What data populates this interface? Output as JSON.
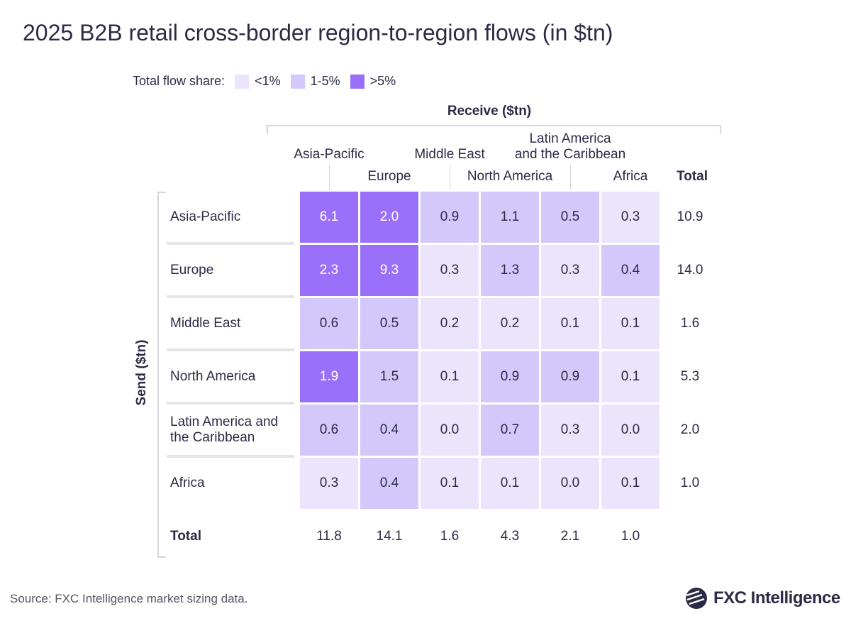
{
  "title": "2025 B2B retail cross-border region-to-region flows (in $tn)",
  "legend": {
    "label": "Total flow share:",
    "items": [
      {
        "label": "<1%",
        "level": "low",
        "color": "#ebe4fc"
      },
      {
        "label": "1-5%",
        "level": "mid",
        "color": "#d4c8fb"
      },
      {
        "label": ">5%",
        "level": "high",
        "color": "#9a70fb"
      }
    ]
  },
  "chart_data": {
    "type": "heatmap",
    "title": "2025 B2B retail cross-border region-to-region flows (in $tn)",
    "xlabel": "Receive ($tn)",
    "ylabel": "Send ($tn)",
    "columns": [
      "Asia-Pacific",
      "Europe",
      "Middle East",
      "North America",
      "Latin America and the Caribbean",
      "Africa"
    ],
    "column_lines": [
      [
        "Asia-Pacific"
      ],
      [
        "Europe"
      ],
      [
        "Middle East"
      ],
      [
        "North America"
      ],
      [
        "Latin America",
        "and the Caribbean"
      ],
      [
        "Africa"
      ]
    ],
    "rows": [
      "Asia-Pacific",
      "Europe",
      "Middle East",
      "North America",
      "Latin America and the Caribbean",
      "Africa"
    ],
    "row_lines": [
      [
        "Asia-Pacific"
      ],
      [
        "Europe"
      ],
      [
        "Middle East"
      ],
      [
        "North America"
      ],
      [
        "Latin America and",
        "the Caribbean"
      ],
      [
        "Africa"
      ]
    ],
    "values": [
      [
        "6.1",
        "2.0",
        "0.9",
        "1.1",
        "0.5",
        "0.3"
      ],
      [
        "2.3",
        "9.3",
        "0.3",
        "1.3",
        "0.3",
        "0.4"
      ],
      [
        "0.6",
        "0.5",
        "0.2",
        "0.2",
        "0.1",
        "0.1"
      ],
      [
        "1.9",
        "1.5",
        "0.1",
        "0.9",
        "0.9",
        "0.1"
      ],
      [
        "0.6",
        "0.4",
        "0.0",
        "0.7",
        "0.3",
        "0.0"
      ],
      [
        "0.3",
        "0.4",
        "0.1",
        "0.1",
        "0.0",
        "0.1"
      ]
    ],
    "share_levels": [
      [
        "high",
        "high",
        "mid",
        "mid",
        "mid",
        "low"
      ],
      [
        "high",
        "high",
        "low",
        "mid",
        "low",
        "mid"
      ],
      [
        "mid",
        "mid",
        "low",
        "low",
        "low",
        "low"
      ],
      [
        "high",
        "mid",
        "low",
        "mid",
        "mid",
        "low"
      ],
      [
        "mid",
        "mid",
        "low",
        "mid",
        "low",
        "low"
      ],
      [
        "low",
        "mid",
        "low",
        "low",
        "low",
        "low"
      ]
    ],
    "total_label": "Total",
    "row_totals": [
      "10.9",
      "14.0",
      "1.6",
      "5.3",
      "2.0",
      "1.0"
    ],
    "column_totals": [
      "11.8",
      "14.1",
      "1.6",
      "4.3",
      "2.1",
      "1.0"
    ]
  },
  "source": "Source: FXC Intelligence market sizing data.",
  "logo": {
    "text": "FXC Intelligence"
  }
}
